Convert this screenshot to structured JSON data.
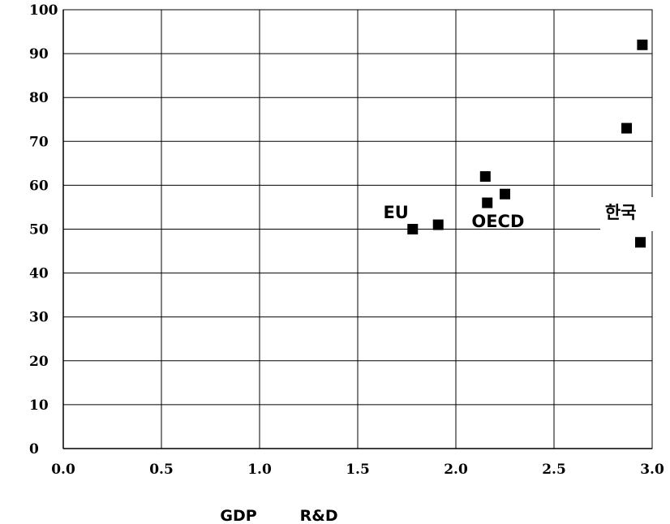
{
  "chart_data": {
    "type": "scatter",
    "xlim": [
      0,
      3
    ],
    "ylim": [
      0,
      100
    ],
    "x_ticks": [
      "0.0",
      "0.5",
      "1.0",
      "1.5",
      "2.0",
      "2.5",
      "3.0"
    ],
    "y_ticks": [
      "0",
      "10",
      "20",
      "30",
      "40",
      "50",
      "60",
      "70",
      "80",
      "90",
      "100"
    ],
    "grid": true,
    "xlabel": "GDP        R&D",
    "series": [
      {
        "marker": "square",
        "color": "#000000",
        "points": [
          {
            "x": 1.78,
            "y": 50
          },
          {
            "x": 1.91,
            "y": 51
          },
          {
            "x": 2.15,
            "y": 62
          },
          {
            "x": 2.16,
            "y": 56
          },
          {
            "x": 2.25,
            "y": 58
          },
          {
            "x": 2.87,
            "y": 73
          },
          {
            "x": 2.95,
            "y": 92
          },
          {
            "x": 2.94,
            "y": 47
          }
        ]
      }
    ],
    "annotations": [
      {
        "text": "EU",
        "x": 1.63,
        "y": 52.5
      },
      {
        "text": "OECD",
        "x": 2.08,
        "y": 50.5
      },
      {
        "text": "한국",
        "x": 2.76,
        "y": 52.5
      }
    ]
  }
}
